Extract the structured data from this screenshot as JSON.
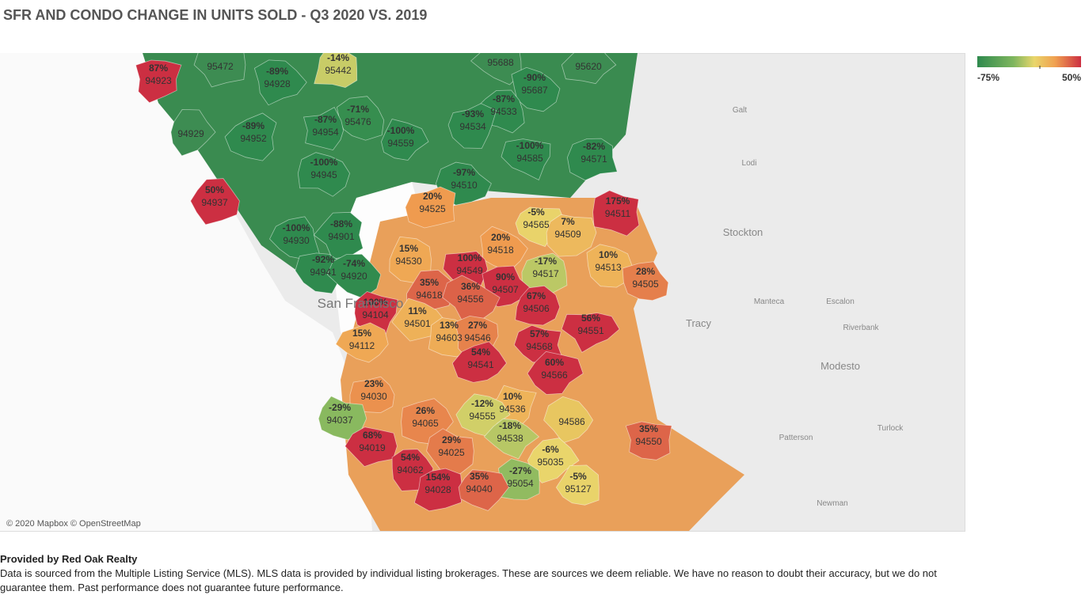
{
  "title": "SFR AND CONDO CHANGE IN UNITS SOLD - Q3 2020 VS. 2019",
  "legend": {
    "min": {
      "value": -75,
      "label": "-75%"
    },
    "max": {
      "value": 50,
      "label": "50%"
    }
  },
  "regions": [
    {
      "zip": "94923",
      "change": {
        "value": 87,
        "label": "87%"
      }
    },
    {
      "zip": "95472"
    },
    {
      "zip": "94928",
      "change": {
        "value": -89,
        "label": "-89%"
      }
    },
    {
      "zip": "95442",
      "change": {
        "value": -14,
        "label": "-14%"
      }
    },
    {
      "zip": "95688"
    },
    {
      "zip": "95620"
    },
    {
      "zip": "95687",
      "change": {
        "value": -90,
        "label": "-90%"
      }
    },
    {
      "zip": "94533",
      "change": {
        "value": -87,
        "label": "-87%"
      }
    },
    {
      "zip": "94534",
      "change": {
        "value": -93,
        "label": "-93%"
      }
    },
    {
      "zip": "95476",
      "change": {
        "value": -71,
        "label": "-71%"
      }
    },
    {
      "zip": "94954",
      "change": {
        "value": -87,
        "label": "-87%"
      }
    },
    {
      "zip": "94952",
      "change": {
        "value": -89,
        "label": "-89%"
      }
    },
    {
      "zip": "94929"
    },
    {
      "zip": "94559",
      "change": {
        "value": -100,
        "label": "-100%"
      }
    },
    {
      "zip": "94585",
      "change": {
        "value": -100,
        "label": "-100%"
      }
    },
    {
      "zip": "94571",
      "change": {
        "value": -82,
        "label": "-82%"
      }
    },
    {
      "zip": "94945",
      "change": {
        "value": -100,
        "label": "-100%"
      }
    },
    {
      "zip": "94510",
      "change": {
        "value": -97,
        "label": "-97%"
      }
    },
    {
      "zip": "94937",
      "change": {
        "value": 50,
        "label": "50%"
      }
    },
    {
      "zip": "94525",
      "change": {
        "value": 20,
        "label": "20%"
      }
    },
    {
      "zip": "94511",
      "change": {
        "value": 175,
        "label": "175%"
      }
    },
    {
      "zip": "94565",
      "change": {
        "value": -5,
        "label": "-5%"
      }
    },
    {
      "zip": "94509",
      "change": {
        "value": 7,
        "label": "7%"
      }
    },
    {
      "zip": "94930",
      "change": {
        "value": -100,
        "label": "-100%"
      }
    },
    {
      "zip": "94901",
      "change": {
        "value": -88,
        "label": "-88%"
      }
    },
    {
      "zip": "94518",
      "change": {
        "value": 20,
        "label": "20%"
      }
    },
    {
      "zip": "94530",
      "change": {
        "value": 15,
        "label": "15%"
      }
    },
    {
      "zip": "94517",
      "change": {
        "value": -17,
        "label": "-17%"
      }
    },
    {
      "zip": "94513",
      "change": {
        "value": 10,
        "label": "10%"
      }
    },
    {
      "zip": "94549",
      "change": {
        "value": 100,
        "label": "100%"
      }
    },
    {
      "zip": "94941",
      "change": {
        "value": -92,
        "label": "-92%"
      }
    },
    {
      "zip": "94920",
      "change": {
        "value": -74,
        "label": "-74%"
      }
    },
    {
      "zip": "94505",
      "change": {
        "value": 28,
        "label": "28%"
      }
    },
    {
      "zip": "94618",
      "change": {
        "value": 35,
        "label": "35%"
      }
    },
    {
      "zip": "94507",
      "change": {
        "value": 90,
        "label": "90%"
      }
    },
    {
      "zip": "94556",
      "change": {
        "value": 36,
        "label": "36%"
      }
    },
    {
      "zip": "94506",
      "change": {
        "value": 67,
        "label": "67%"
      }
    },
    {
      "zip": "94104",
      "change": {
        "value": 100,
        "label": "100%"
      }
    },
    {
      "zip": "94501",
      "change": {
        "value": 11,
        "label": "11%"
      }
    },
    {
      "zip": "94551",
      "change": {
        "value": 56,
        "label": "56%"
      }
    },
    {
      "zip": "94603",
      "change": {
        "value": 13,
        "label": "13%"
      }
    },
    {
      "zip": "94546",
      "change": {
        "value": 27,
        "label": "27%"
      }
    },
    {
      "zip": "94568",
      "change": {
        "value": 57,
        "label": "57%"
      }
    },
    {
      "zip": "94112",
      "change": {
        "value": 15,
        "label": "15%"
      }
    },
    {
      "zip": "94541",
      "change": {
        "value": 54,
        "label": "54%"
      }
    },
    {
      "zip": "94566",
      "change": {
        "value": 60,
        "label": "60%"
      }
    },
    {
      "zip": "94030",
      "change": {
        "value": 23,
        "label": "23%"
      }
    },
    {
      "zip": "94536",
      "change": {
        "value": 10,
        "label": "10%"
      }
    },
    {
      "zip": "94586"
    },
    {
      "zip": "94037",
      "change": {
        "value": -29,
        "label": "-29%"
      }
    },
    {
      "zip": "94065",
      "change": {
        "value": 26,
        "label": "26%"
      }
    },
    {
      "zip": "94555",
      "change": {
        "value": -12,
        "label": "-12%"
      }
    },
    {
      "zip": "94538",
      "change": {
        "value": -18,
        "label": "-18%"
      }
    },
    {
      "zip": "94550",
      "change": {
        "value": 35,
        "label": "35%"
      }
    },
    {
      "zip": "94019",
      "change": {
        "value": 68,
        "label": "68%"
      }
    },
    {
      "zip": "94025",
      "change": {
        "value": 29,
        "label": "29%"
      }
    },
    {
      "zip": "95035",
      "change": {
        "value": -6,
        "label": "-6%"
      }
    },
    {
      "zip": "94062",
      "change": {
        "value": 54,
        "label": "54%"
      }
    },
    {
      "zip": "95054",
      "change": {
        "value": -27,
        "label": "-27%"
      }
    },
    {
      "zip": "95127",
      "change": {
        "value": -5,
        "label": "-5%"
      }
    },
    {
      "zip": "94028",
      "change": {
        "value": 154,
        "label": "154%"
      }
    },
    {
      "zip": "94040",
      "change": {
        "value": 35,
        "label": "35%"
      }
    }
  ],
  "places": [
    "Galt",
    "Lodi",
    "Stockton",
    "Manteca",
    "Escalon",
    "Tracy",
    "Riverbank",
    "Modesto",
    "Patterson",
    "Turlock",
    "Newman",
    "San Francisco"
  ],
  "attribution": "© 2020 Mapbox © OpenStreetMap",
  "footer": {
    "heading": "Provided by Red Oak Realty",
    "text": "Data is sourced from the Multiple Listing Service (MLS). MLS data is provided by individual listing brokerages. These are sources we deem reliable. We have no reason to doubt their accuracy, but we do not guarantee them. Past performance does not guarantee future performance."
  }
}
